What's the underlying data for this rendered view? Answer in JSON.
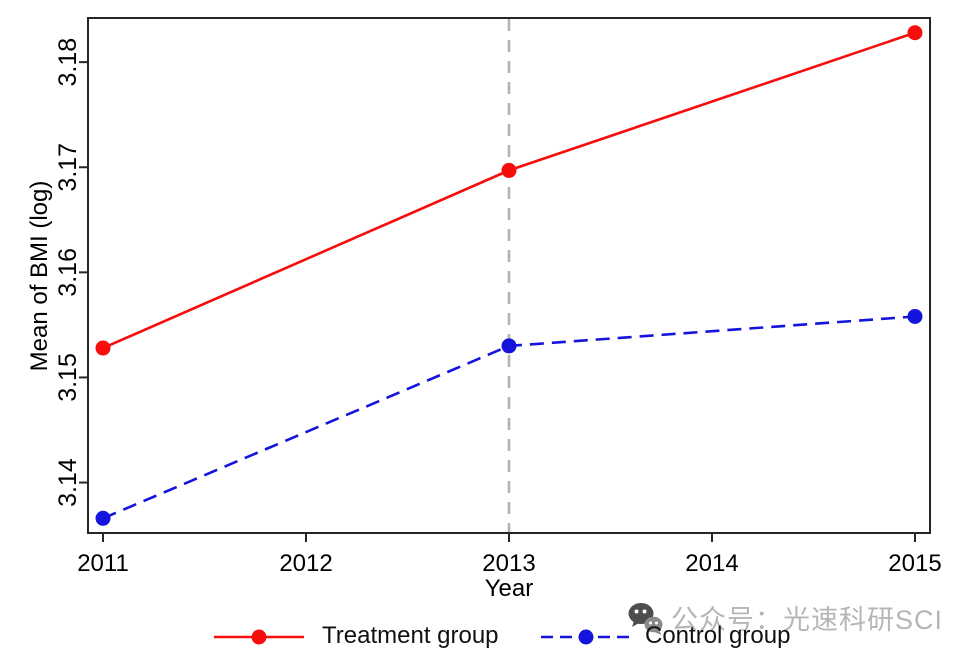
{
  "chart_data": {
    "type": "line",
    "title": "",
    "xlabel": "Year",
    "ylabel": "Mean of BMI (log)",
    "xlim": [
      2010.926,
      2015.074
    ],
    "ylim": [
      3.1352,
      3.1842
    ],
    "xticks": {
      "values": [
        2011,
        2012,
        2013,
        2014,
        2015
      ],
      "labels": [
        "2011",
        "2012",
        "2013",
        "2014",
        "2015"
      ]
    },
    "yticks": {
      "values": [
        3.14,
        3.15,
        3.16,
        3.17,
        3.18
      ],
      "labels": [
        "3.14",
        "3.15",
        "3.16",
        "3.17",
        "3.18"
      ],
      "rotated": true
    },
    "grid": false,
    "axis_color": "#262626",
    "reference_line": {
      "orientation": "vertical",
      "x": 2013,
      "color": "#b3b3b3",
      "style": "dashed"
    },
    "series": [
      {
        "name": "Treatment group",
        "color": "#f80d0d",
        "style": "solid",
        "marker": "circle",
        "x": [
          2011,
          2013,
          2015
        ],
        "y": [
          3.1528,
          3.1697,
          3.1828
        ]
      },
      {
        "name": "Control group",
        "color": "#1414dd",
        "style": "dashed",
        "marker": "circle",
        "x": [
          2011,
          2013,
          2015
        ],
        "y": [
          3.1366,
          3.153,
          3.1558
        ]
      }
    ],
    "legend": {
      "position": "bottom",
      "entries": [
        "Treatment group",
        "Control group"
      ]
    }
  },
  "watermark": {
    "icon": "wechat-icon",
    "text": "公众号：光速科研SCI",
    "color": "#b6b6b6"
  }
}
